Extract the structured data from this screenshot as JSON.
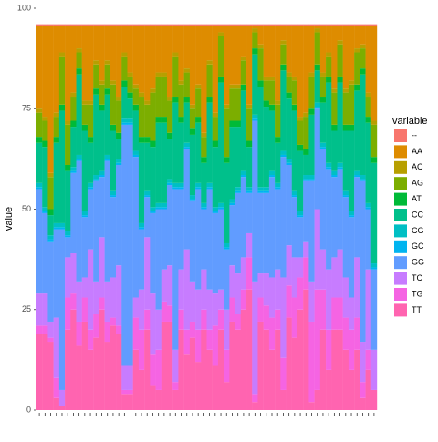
{
  "chart_data": {
    "type": "bar",
    "stacked": true,
    "y_label": "value",
    "legend_title": "variable",
    "categories": [
      null,
      null,
      null,
      null,
      null,
      null,
      null,
      null,
      null,
      null,
      null,
      null,
      null,
      null,
      null,
      null,
      null,
      null,
      null,
      null,
      null,
      null,
      null,
      null,
      null,
      null,
      null,
      null,
      null,
      null,
      null,
      null,
      null,
      null,
      null,
      null,
      null,
      null,
      null,
      null,
      null,
      null,
      null,
      null,
      null,
      null,
      null,
      null,
      null,
      null,
      null,
      null,
      null,
      null,
      null,
      null,
      null,
      null,
      null,
      null
    ],
    "ylim": [
      0,
      100
    ],
    "yticks": [
      0,
      25,
      50,
      75,
      100
    ],
    "grid": false,
    "series": [
      {
        "name": "--",
        "color": "#F8766D",
        "values": [
          0.5,
          0.5,
          0.5,
          0.5,
          0.5,
          0.5,
          0.5,
          0.5,
          0.5,
          0.5,
          0.5,
          0.5,
          0.5,
          0.5,
          0.5,
          0.5,
          0.5,
          0.5,
          0.5,
          0.5,
          0.5,
          0.5,
          0.5,
          0.5,
          0.5,
          0.5,
          0.5,
          0.5,
          0.5,
          0.5,
          0.5,
          0.5,
          0.5,
          0.5,
          0.5,
          0.5,
          0.5,
          0.5,
          0.5,
          0.5,
          0.5,
          0.5,
          0.5,
          0.5,
          0.5,
          0.5,
          0.5,
          0.5,
          0.5,
          0.5,
          0.5,
          0.5,
          0.5,
          0.5,
          0.5,
          0.5,
          0.5,
          0.5,
          0.5,
          0.5
        ]
      },
      {
        "name": "AA",
        "color": "#DE8C00",
        "values": [
          20.5,
          22.5,
          36.5,
          21.5,
          6.5,
          23.5,
          16.5,
          5.5,
          18.5,
          18.5,
          8.5,
          13.5,
          8.5,
          13.5,
          17.5,
          6.5,
          11.5,
          14.5,
          16.5,
          18.5,
          15.5,
          11.5,
          11.5,
          17.5,
          6.5,
          13.5,
          10.5,
          19.5,
          14.5,
          26.5,
          8.5,
          21.5,
          1.5,
          19.5,
          14.5,
          14.5,
          7.5,
          19.5,
          0.5,
          4.5,
          12.5,
          12.5,
          18.5,
          3.5,
          11.5,
          12.5,
          22.5,
          21.5,
          11.5,
          0.5,
          11.5,
          6.5,
          15.5,
          3.5,
          15.5,
          13.5,
          5.5,
          4.5,
          16.5,
          23.5
        ]
      },
      {
        "name": "AC",
        "color": "#B79F00",
        "values": [
          1,
          1,
          1,
          1,
          1,
          1,
          1,
          1,
          1,
          1,
          1,
          1,
          1,
          1,
          1,
          1,
          1,
          1,
          1,
          1,
          1,
          1,
          1,
          1,
          1,
          1,
          1,
          1,
          1,
          1,
          1,
          1,
          1,
          1,
          1,
          1,
          1,
          1,
          1,
          1,
          1,
          1,
          1,
          1,
          1,
          1,
          1,
          1,
          1,
          1,
          1,
          1,
          1,
          1,
          1,
          1,
          1,
          1,
          1,
          1
        ]
      },
      {
        "name": "AG",
        "color": "#7CAE00",
        "values": [
          6,
          5,
          8,
          5,
          12,
          10,
          6,
          4,
          5,
          8,
          6,
          5,
          6,
          10,
          8,
          6,
          4,
          4,
          10,
          8,
          12,
          10,
          10,
          8,
          10,
          8,
          6,
          5,
          7,
          5,
          8,
          6,
          10,
          12,
          8,
          8,
          6,
          8,
          4,
          8,
          5,
          6,
          8,
          5,
          4,
          6,
          6,
          8,
          8,
          8,
          5,
          5,
          8,
          8,
          8,
          10,
          8,
          5,
          5,
          8
        ]
      },
      {
        "name": "AT",
        "color": "#00BA38",
        "values": [
          1.5,
          1.5,
          1.5,
          1.5,
          1.5,
          1.5,
          1.5,
          1.5,
          1.5,
          1.5,
          1.5,
          1.5,
          1.5,
          1.5,
          1.5,
          1.5,
          1.5,
          1.5,
          1.5,
          1.5,
          1.5,
          1.5,
          1.5,
          1.5,
          1.5,
          1.5,
          1.5,
          1.5,
          1.5,
          1.5,
          1.5,
          1.5,
          1.5,
          1.5,
          1.5,
          1.5,
          1.5,
          1.5,
          1.5,
          1.5,
          1.5,
          1.5,
          1.5,
          1.5,
          1.5,
          1.5,
          1.5,
          1.5,
          1.5,
          1.5,
          1.5,
          1.5,
          1.5,
          1.5,
          1.5,
          1.5,
          1.5,
          1.5,
          1.5,
          1.5
        ]
      },
      {
        "name": "CC",
        "color": "#00C08B",
        "values": [
          10,
          15,
          5,
          20,
          28,
          15,
          10,
          20,
          20,
          10,
          20,
          15,
          15,
          15,
          5,
          8,
          5,
          10,
          20,
          12,
          15,
          20,
          20,
          10,
          20,
          15,
          10,
          15,
          15,
          10,
          20,
          15,
          30,
          20,
          18,
          15,
          20,
          10,
          15,
          25,
          20,
          15,
          10,
          20,
          15,
          20,
          15,
          5,
          15,
          8,
          10,
          20,
          10,
          20,
          15,
          20,
          20,
          25,
          20,
          25
        ]
      },
      {
        "name": "CG",
        "color": "#00BFC4",
        "values": [
          1,
          1,
          1,
          1,
          1,
          1,
          1,
          1,
          1,
          1,
          1,
          1,
          1,
          1,
          1,
          1,
          1,
          1,
          1,
          1,
          1,
          1,
          1,
          1,
          1,
          1,
          1,
          1,
          1,
          1,
          1,
          1,
          1,
          1,
          1,
          1,
          1,
          1,
          1,
          1,
          1,
          1,
          1,
          1,
          1,
          1,
          1,
          1,
          1,
          1,
          1,
          1,
          1,
          1,
          1,
          1,
          1,
          1,
          1,
          1
        ]
      },
      {
        "name": "GC",
        "color": "#00B4F0",
        "values": [
          0.5,
          0.5,
          0.5,
          0.5,
          0.5,
          0.5,
          0.5,
          0.5,
          0.5,
          0.5,
          0.5,
          0.5,
          0.5,
          0.5,
          0.5,
          0.5,
          0.5,
          0.5,
          0.5,
          0.5,
          0.5,
          0.5,
          0.5,
          0.5,
          0.5,
          0.5,
          0.5,
          0.5,
          0.5,
          0.5,
          0.5,
          0.5,
          0.5,
          0.5,
          0.5,
          0.5,
          0.5,
          0.5,
          0.5,
          0.5,
          0.5,
          0.5,
          0.5,
          0.5,
          0.5,
          0.5,
          0.5,
          0.5,
          0.5,
          0.5,
          0.5,
          0.5,
          0.5,
          0.5,
          0.5,
          0.5,
          0.5,
          0.5,
          0.5,
          0.5
        ]
      },
      {
        "name": "GG",
        "color": "#619CFF",
        "values": [
          26,
          20,
          20,
          22,
          40,
          5,
          20,
          30,
          15,
          15,
          25,
          15,
          30,
          20,
          25,
          60,
          60,
          35,
          15,
          10,
          20,
          25,
          15,
          20,
          40,
          20,
          25,
          20,
          25,
          15,
          25,
          20,
          20,
          15,
          15,
          20,
          20,
          10,
          40,
          20,
          20,
          25,
          20,
          30,
          20,
          15,
          10,
          15,
          25,
          25,
          25,
          25,
          20,
          20,
          20,
          20,
          20,
          40,
          15,
          20
        ]
      },
      {
        "name": "TC",
        "color": "#C77CFF",
        "values": [
          8,
          8,
          4,
          15,
          4,
          10,
          10,
          10,
          5,
          20,
          8,
          15,
          10,
          10,
          15,
          6,
          6,
          5,
          10,
          18,
          15,
          10,
          8,
          10,
          8,
          10,
          20,
          10,
          10,
          10,
          10,
          8,
          5,
          10,
          8,
          10,
          8,
          6,
          28,
          6,
          8,
          10,
          10,
          20,
          10,
          10,
          5,
          4,
          10,
          20,
          10,
          15,
          10,
          12,
          10,
          8,
          15,
          10,
          20,
          10
        ]
      },
      {
        "name": "TG",
        "color": "#F564E3",
        "values": [
          2,
          2,
          1,
          5,
          0,
          8,
          4,
          6,
          6,
          5,
          6,
          3,
          5,
          2,
          2,
          1,
          1,
          8,
          10,
          5,
          8,
          10,
          5,
          4,
          2,
          5,
          6,
          4,
          8,
          5,
          5,
          10,
          5,
          8,
          6,
          4,
          5,
          8,
          2,
          6,
          6,
          8,
          5,
          8,
          8,
          10,
          8,
          8,
          20,
          25,
          10,
          10,
          8,
          8,
          8,
          10,
          8,
          4,
          5,
          0
        ]
      },
      {
        "name": "TT",
        "color": "#FF64B0",
        "values": [
          19,
          19,
          17,
          3,
          1,
          20,
          25,
          16,
          22,
          15,
          18,
          25,
          17,
          21,
          19,
          4,
          4,
          15,
          10,
          20,
          6,
          5,
          22,
          22,
          5,
          20,
          14,
          18,
          12,
          20,
          15,
          11,
          20,
          7,
          22,
          20,
          25,
          30,
          2,
          22,
          20,
          15,
          20,
          5,
          23,
          18,
          25,
          30,
          2,
          5,
          20,
          10,
          20,
          20,
          15,
          10,
          15,
          3,
          10,
          5
        ]
      }
    ]
  }
}
